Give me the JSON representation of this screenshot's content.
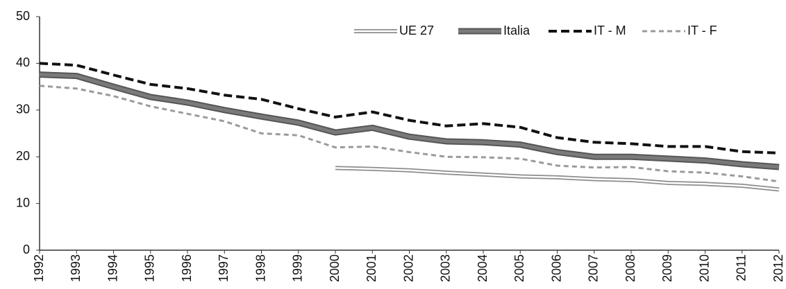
{
  "chart_data": {
    "type": "line",
    "categories": [
      "1992",
      "1993",
      "1994",
      "1995",
      "1996",
      "1997",
      "1998",
      "1999",
      "2000",
      "2001",
      "2002",
      "2003",
      "2004",
      "2005",
      "2006",
      "2007",
      "2008",
      "2009",
      "2010",
      "2011",
      "2012"
    ],
    "series": [
      {
        "name": "UE 27",
        "color": "#8c8c8c",
        "values": [
          null,
          null,
          null,
          null,
          null,
          null,
          null,
          null,
          17.6,
          17.4,
          17.1,
          16.6,
          16.2,
          15.8,
          15.6,
          15.2,
          15.0,
          14.4,
          14.2,
          13.8,
          13.0
        ]
      },
      {
        "name": "Italia",
        "color": "#7a7a7a",
        "values": [
          37.6,
          37.3,
          35.0,
          32.8,
          31.6,
          30.0,
          28.6,
          27.3,
          25.2,
          26.2,
          24.3,
          23.3,
          23.1,
          22.6,
          21.0,
          20.0,
          20.0,
          19.6,
          19.2,
          18.4,
          17.8
        ]
      },
      {
        "name": "IT - M",
        "color": "#111111",
        "values": [
          40.0,
          39.6,
          37.5,
          35.5,
          34.6,
          33.2,
          32.3,
          30.3,
          28.5,
          29.6,
          27.8,
          26.6,
          27.1,
          26.3,
          24.1,
          23.1,
          22.8,
          22.2,
          22.2,
          21.1,
          20.8
        ]
      },
      {
        "name": "IT - F",
        "color": "#9a9a9a",
        "values": [
          35.2,
          34.6,
          33.0,
          30.8,
          29.2,
          27.6,
          25.0,
          24.6,
          22.0,
          22.2,
          21.0,
          20.0,
          19.9,
          19.6,
          18.1,
          17.7,
          17.8,
          16.9,
          16.6,
          15.8,
          14.7
        ]
      }
    ],
    "ylim": [
      0,
      50
    ],
    "yticks": [
      0,
      10,
      20,
      30,
      40,
      50
    ],
    "grid": false,
    "legend": "top-right"
  }
}
